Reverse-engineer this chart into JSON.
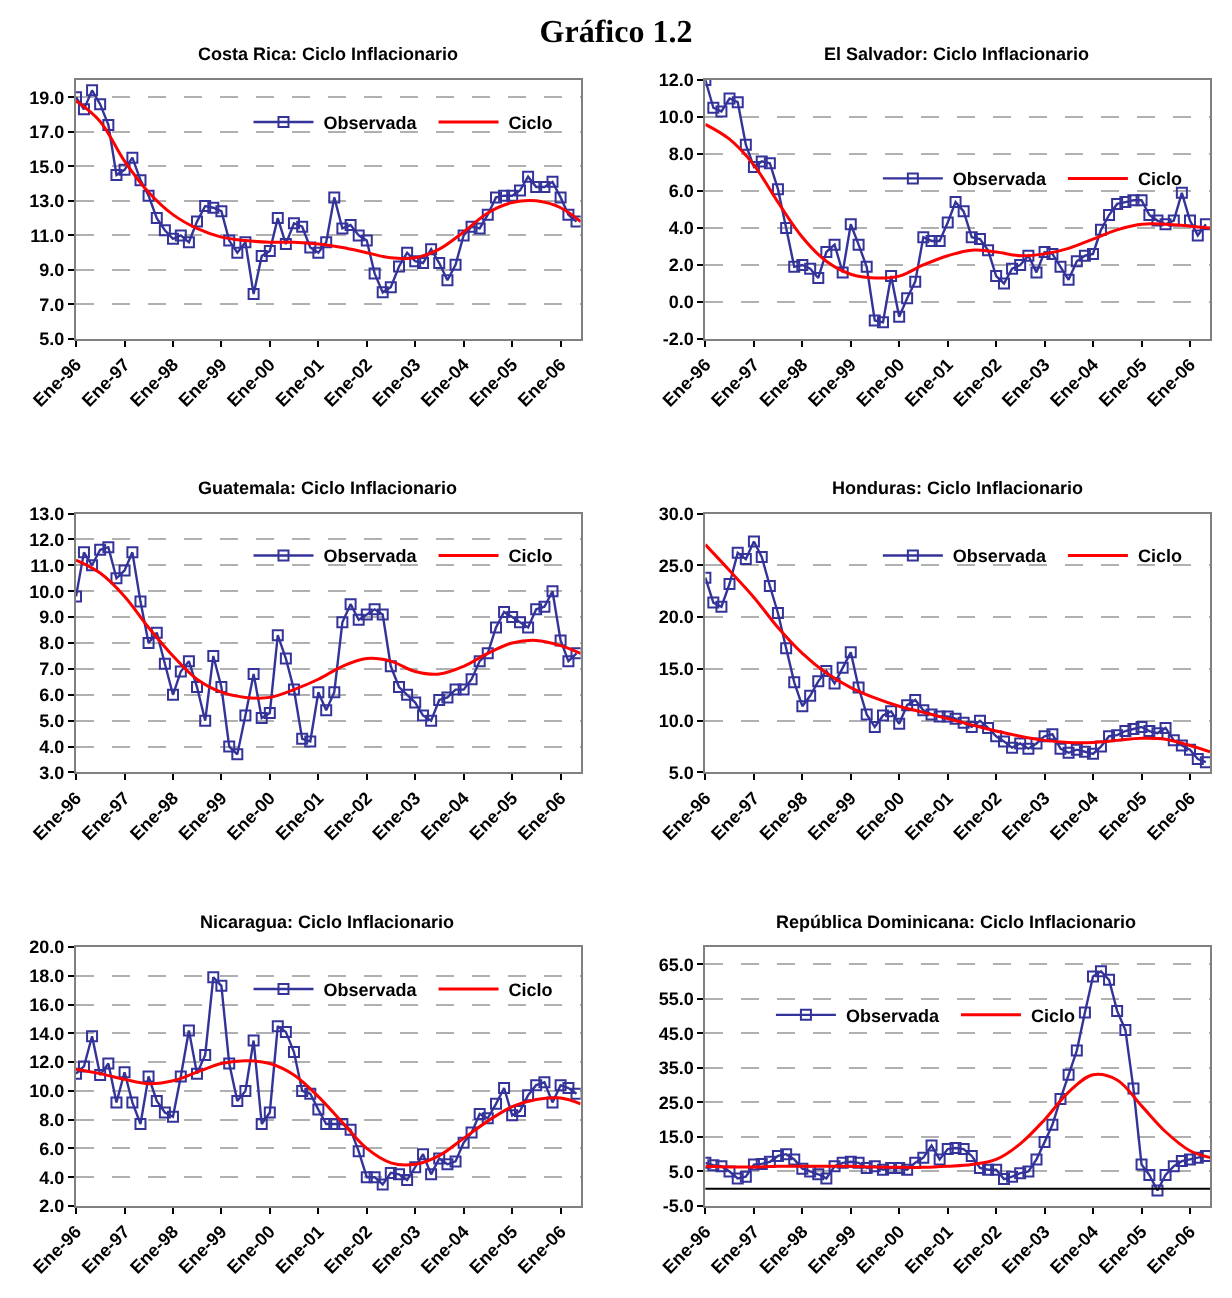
{
  "chart_data": [
    {
      "type": "other",
      "title": "Gráfico 1.2"
    },
    {
      "type": "line",
      "title": "Costa Rica: Ciclo Inflacionario",
      "legend": "top right",
      "grid": "y",
      "x": [
        "1996-01",
        "1996-03",
        "1996-05",
        "1996-07",
        "1996-09",
        "1996-11",
        "1997-01",
        "1997-03",
        "1997-05",
        "1997-07",
        "1997-09",
        "1997-11",
        "1998-01",
        "1998-03",
        "1998-05",
        "1998-07",
        "1998-09",
        "1998-11",
        "1999-01",
        "1999-03",
        "1999-05",
        "1999-07",
        "1999-09",
        "1999-11",
        "2000-01",
        "2000-03",
        "2000-05",
        "2000-07",
        "2000-09",
        "2000-11",
        "2001-01",
        "2001-03",
        "2001-05",
        "2001-07",
        "2001-09",
        "2001-11",
        "2002-01",
        "2002-03",
        "2002-05",
        "2002-07",
        "2002-09",
        "2002-11",
        "2003-01",
        "2003-03",
        "2003-05",
        "2003-07",
        "2003-09",
        "2003-11",
        "2004-01",
        "2004-03",
        "2004-05",
        "2004-07",
        "2004-09",
        "2004-11",
        "2005-01",
        "2005-03",
        "2005-05",
        "2005-07",
        "2005-09",
        "2005-11",
        "2006-01",
        "2006-03",
        "2006-05"
      ],
      "xlim": [
        "1996-01",
        "2006-06"
      ],
      "xticks": [
        {
          "value": "1996-01",
          "label": "Ene-96"
        },
        {
          "value": "1997-01",
          "label": "Ene-97"
        },
        {
          "value": "1998-01",
          "label": "Ene-98"
        },
        {
          "value": "1999-01",
          "label": "Ene-99"
        },
        {
          "value": "2000-01",
          "label": "Ene-00"
        },
        {
          "value": "2001-01",
          "label": "Ene-01"
        },
        {
          "value": "2002-01",
          "label": "Ene-02"
        },
        {
          "value": "2003-01",
          "label": "Ene-03"
        },
        {
          "value": "2004-01",
          "label": "Ene-04"
        },
        {
          "value": "2005-01",
          "label": "Ene-05"
        },
        {
          "value": "2006-01",
          "label": "Ene-06"
        }
      ],
      "ylim": [
        5,
        20
      ],
      "yticks": [
        {
          "value": 5,
          "label": "5.0"
        },
        {
          "value": 7,
          "label": "7.0"
        },
        {
          "value": 9,
          "label": "9.0"
        },
        {
          "value": 11,
          "label": "11.0"
        },
        {
          "value": 13,
          "label": "13.0"
        },
        {
          "value": 15,
          "label": "15.0"
        },
        {
          "value": 17,
          "label": "17.0"
        },
        {
          "value": 19,
          "label": "19.0"
        }
      ],
      "series": [
        {
          "name": "Observada",
          "color": "#333399",
          "marker": "square",
          "values": [
            19.0,
            18.3,
            19.4,
            18.6,
            17.4,
            14.5,
            14.8,
            15.5,
            14.2,
            13.3,
            12.0,
            11.3,
            10.8,
            11.0,
            10.6,
            11.8,
            12.7,
            12.6,
            12.4,
            10.7,
            10.0,
            10.6,
            7.6,
            9.8,
            10.1,
            12.0,
            10.5,
            11.7,
            11.5,
            10.3,
            10.0,
            10.6,
            13.2,
            11.4,
            11.6,
            11.0,
            10.7,
            8.8,
            7.7,
            8.0,
            9.2,
            10.0,
            9.5,
            9.4,
            10.2,
            9.4,
            8.4,
            9.3,
            11.0,
            11.5,
            11.4,
            12.2,
            13.2,
            13.3,
            13.3,
            13.6,
            14.4,
            13.8,
            13.8,
            14.1,
            13.2,
            12.2,
            11.8
          ]
        },
        {
          "name": "Ciclo",
          "color": "#ff0000",
          "marker": "none",
          "x": [
            "1996-01",
            "1996-07",
            "1997-01",
            "1997-07",
            "1998-01",
            "1998-07",
            "1999-01",
            "1999-07",
            "2000-01",
            "2000-07",
            "2001-01",
            "2001-07",
            "2002-01",
            "2002-07",
            "2003-01",
            "2003-07",
            "2004-01",
            "2004-07",
            "2005-01",
            "2005-07",
            "2006-01",
            "2006-06"
          ],
          "values": [
            18.8,
            17.6,
            15.3,
            13.5,
            12.2,
            11.4,
            10.9,
            10.7,
            10.6,
            10.6,
            10.5,
            10.3,
            10.0,
            9.7,
            9.7,
            10.2,
            11.2,
            12.3,
            12.9,
            13.0,
            12.6,
            11.8
          ]
        }
      ]
    },
    {
      "type": "line",
      "title": "El Salvador: Ciclo Inflacionario",
      "legend": "right",
      "grid": "y",
      "x": [
        "1996-01",
        "1996-03",
        "1996-05",
        "1996-07",
        "1996-09",
        "1996-11",
        "1997-01",
        "1997-03",
        "1997-05",
        "1997-07",
        "1997-09",
        "1997-11",
        "1998-01",
        "1998-03",
        "1998-05",
        "1998-07",
        "1998-09",
        "1998-11",
        "1999-01",
        "1999-03",
        "1999-05",
        "1999-07",
        "1999-09",
        "1999-11",
        "2000-01",
        "2000-03",
        "2000-05",
        "2000-07",
        "2000-09",
        "2000-11",
        "2001-01",
        "2001-03",
        "2001-05",
        "2001-07",
        "2001-09",
        "2001-11",
        "2002-01",
        "2002-03",
        "2002-05",
        "2002-07",
        "2002-09",
        "2002-11",
        "2003-01",
        "2003-03",
        "2003-05",
        "2003-07",
        "2003-09",
        "2003-11",
        "2004-01",
        "2004-03",
        "2004-05",
        "2004-07",
        "2004-09",
        "2004-11",
        "2005-01",
        "2005-03",
        "2005-05",
        "2005-07",
        "2005-09",
        "2005-11",
        "2006-01",
        "2006-03",
        "2006-05"
      ],
      "xlim": [
        "1996-01",
        "2006-06"
      ],
      "xticks": [
        {
          "value": "1996-01",
          "label": "Ene-96"
        },
        {
          "value": "1997-01",
          "label": "Ene-97"
        },
        {
          "value": "1998-01",
          "label": "Ene-98"
        },
        {
          "value": "1999-01",
          "label": "Ene-99"
        },
        {
          "value": "2000-01",
          "label": "Ene-00"
        },
        {
          "value": "2001-01",
          "label": "Ene-01"
        },
        {
          "value": "2002-01",
          "label": "Ene-02"
        },
        {
          "value": "2003-01",
          "label": "Ene-03"
        },
        {
          "value": "2004-01",
          "label": "Ene-04"
        },
        {
          "value": "2005-01",
          "label": "Ene-05"
        },
        {
          "value": "2006-01",
          "label": "Ene-06"
        }
      ],
      "ylim": [
        -2,
        12
      ],
      "yticks": [
        {
          "value": -2,
          "label": "-2.0"
        },
        {
          "value": 0,
          "label": "0.0"
        },
        {
          "value": 2,
          "label": "2.0"
        },
        {
          "value": 4,
          "label": "4.0"
        },
        {
          "value": 6,
          "label": "6.0"
        },
        {
          "value": 8,
          "label": "8.0"
        },
        {
          "value": 10,
          "label": "10.0"
        },
        {
          "value": 12,
          "label": "12.0"
        }
      ],
      "series": [
        {
          "name": "Observada",
          "color": "#333399",
          "marker": "square",
          "values": [
            12.0,
            10.5,
            10.3,
            11.0,
            10.8,
            8.5,
            7.3,
            7.6,
            7.5,
            6.1,
            4.0,
            1.9,
            2.0,
            1.8,
            1.3,
            2.7,
            3.1,
            1.6,
            4.2,
            3.1,
            1.9,
            -1.0,
            -1.1,
            1.4,
            -0.8,
            0.2,
            1.1,
            3.5,
            3.3,
            3.3,
            4.3,
            5.4,
            4.9,
            3.5,
            3.4,
            2.8,
            1.4,
            1.0,
            1.8,
            2.0,
            2.5,
            1.6,
            2.7,
            2.6,
            1.9,
            1.2,
            2.2,
            2.5,
            2.6,
            3.9,
            4.7,
            5.3,
            5.4,
            5.5,
            5.5,
            4.7,
            4.4,
            4.2,
            4.4,
            5.9,
            4.4,
            3.6,
            4.2
          ]
        },
        {
          "name": "Ciclo",
          "color": "#ff0000",
          "marker": "none",
          "x": [
            "1996-01",
            "1996-07",
            "1997-01",
            "1997-07",
            "1998-01",
            "1998-07",
            "1999-01",
            "1999-07",
            "2000-01",
            "2000-07",
            "2001-01",
            "2001-07",
            "2002-01",
            "2002-07",
            "2003-01",
            "2003-07",
            "2004-01",
            "2004-07",
            "2005-01",
            "2005-07",
            "2006-01",
            "2006-06"
          ],
          "values": [
            9.6,
            8.8,
            7.4,
            5.4,
            3.5,
            2.2,
            1.5,
            1.3,
            1.4,
            2.0,
            2.5,
            2.8,
            2.7,
            2.5,
            2.6,
            2.9,
            3.4,
            3.9,
            4.2,
            4.2,
            4.1,
            4.0
          ]
        }
      ]
    },
    {
      "type": "line",
      "title": "Guatemala: Ciclo Inflacionario",
      "legend": "top right",
      "grid": "y",
      "x": [
        "1996-01",
        "1996-03",
        "1996-05",
        "1996-07",
        "1996-09",
        "1996-11",
        "1997-01",
        "1997-03",
        "1997-05",
        "1997-07",
        "1997-09",
        "1997-11",
        "1998-01",
        "1998-03",
        "1998-05",
        "1998-07",
        "1998-09",
        "1998-11",
        "1999-01",
        "1999-03",
        "1999-05",
        "1999-07",
        "1999-09",
        "1999-11",
        "2000-01",
        "2000-03",
        "2000-05",
        "2000-07",
        "2000-09",
        "2000-11",
        "2001-01",
        "2001-03",
        "2001-05",
        "2001-07",
        "2001-09",
        "2001-11",
        "2002-01",
        "2002-03",
        "2002-05",
        "2002-07",
        "2002-09",
        "2002-11",
        "2003-01",
        "2003-03",
        "2003-05",
        "2003-07",
        "2003-09",
        "2003-11",
        "2004-01",
        "2004-03",
        "2004-05",
        "2004-07",
        "2004-09",
        "2004-11",
        "2005-01",
        "2005-03",
        "2005-05",
        "2005-07",
        "2005-09",
        "2005-11",
        "2006-01",
        "2006-03",
        "2006-05"
      ],
      "xlim": [
        "1996-01",
        "2006-06"
      ],
      "xticks": [
        {
          "value": "1996-01",
          "label": "Ene-96"
        },
        {
          "value": "1997-01",
          "label": "Ene-97"
        },
        {
          "value": "1998-01",
          "label": "Ene-98"
        },
        {
          "value": "1999-01",
          "label": "Ene-99"
        },
        {
          "value": "2000-01",
          "label": "Ene-00"
        },
        {
          "value": "2001-01",
          "label": "Ene-01"
        },
        {
          "value": "2002-01",
          "label": "Ene-02"
        },
        {
          "value": "2003-01",
          "label": "Ene-03"
        },
        {
          "value": "2004-01",
          "label": "Ene-04"
        },
        {
          "value": "2005-01",
          "label": "Ene-05"
        },
        {
          "value": "2006-01",
          "label": "Ene-06"
        }
      ],
      "ylim": [
        3,
        13
      ],
      "yticks": [
        {
          "value": 3,
          "label": "3.0"
        },
        {
          "value": 4,
          "label": "4.0"
        },
        {
          "value": 5,
          "label": "5.0"
        },
        {
          "value": 6,
          "label": "6.0"
        },
        {
          "value": 7,
          "label": "7.0"
        },
        {
          "value": 8,
          "label": "8.0"
        },
        {
          "value": 9,
          "label": "9.0"
        },
        {
          "value": 10,
          "label": "10.0"
        },
        {
          "value": 11,
          "label": "11.0"
        },
        {
          "value": 12,
          "label": "12.0"
        },
        {
          "value": 13,
          "label": "13.0"
        }
      ],
      "series": [
        {
          "name": "Observada",
          "color": "#333399",
          "marker": "square",
          "values": [
            9.8,
            11.5,
            11.0,
            11.6,
            11.7,
            10.5,
            10.8,
            11.5,
            9.6,
            8.0,
            8.4,
            7.2,
            6.0,
            6.9,
            7.3,
            6.3,
            5.0,
            7.5,
            6.3,
            4.0,
            3.7,
            5.2,
            6.8,
            5.1,
            5.3,
            8.3,
            7.4,
            6.2,
            4.3,
            4.2,
            6.1,
            5.4,
            6.1,
            8.8,
            9.5,
            8.9,
            9.1,
            9.3,
            9.1,
            7.1,
            6.3,
            6.0,
            5.7,
            5.2,
            5.0,
            5.8,
            5.9,
            6.2,
            6.2,
            6.6,
            7.3,
            7.6,
            8.6,
            9.2,
            9.0,
            8.8,
            8.6,
            9.3,
            9.4,
            10.0,
            8.1,
            7.3,
            7.6
          ]
        },
        {
          "name": "Ciclo",
          "color": "#ff0000",
          "marker": "none",
          "x": [
            "1996-01",
            "1996-07",
            "1997-01",
            "1997-07",
            "1998-01",
            "1998-07",
            "1999-01",
            "1999-07",
            "2000-01",
            "2000-07",
            "2001-01",
            "2001-07",
            "2002-01",
            "2002-07",
            "2003-01",
            "2003-07",
            "2004-01",
            "2004-07",
            "2005-01",
            "2005-07",
            "2006-01",
            "2006-06"
          ],
          "values": [
            11.2,
            10.7,
            9.8,
            8.6,
            7.5,
            6.6,
            6.1,
            5.9,
            5.9,
            6.2,
            6.6,
            7.1,
            7.4,
            7.3,
            6.9,
            6.8,
            7.1,
            7.6,
            8.0,
            8.1,
            7.9,
            7.6
          ]
        }
      ]
    },
    {
      "type": "line",
      "title": "Honduras: Ciclo Inflacionario",
      "legend": "top right",
      "grid": "y",
      "x": [
        "1996-01",
        "1996-03",
        "1996-05",
        "1996-07",
        "1996-09",
        "1996-11",
        "1997-01",
        "1997-03",
        "1997-05",
        "1997-07",
        "1997-09",
        "1997-11",
        "1998-01",
        "1998-03",
        "1998-05",
        "1998-07",
        "1998-09",
        "1998-11",
        "1999-01",
        "1999-03",
        "1999-05",
        "1999-07",
        "1999-09",
        "1999-11",
        "2000-01",
        "2000-03",
        "2000-05",
        "2000-07",
        "2000-09",
        "2000-11",
        "2001-01",
        "2001-03",
        "2001-05",
        "2001-07",
        "2001-09",
        "2001-11",
        "2002-01",
        "2002-03",
        "2002-05",
        "2002-07",
        "2002-09",
        "2002-11",
        "2003-01",
        "2003-03",
        "2003-05",
        "2003-07",
        "2003-09",
        "2003-11",
        "2004-01",
        "2004-03",
        "2004-05",
        "2004-07",
        "2004-09",
        "2004-11",
        "2005-01",
        "2005-03",
        "2005-05",
        "2005-07",
        "2005-09",
        "2005-11",
        "2006-01",
        "2006-03",
        "2006-05"
      ],
      "xlim": [
        "1996-01",
        "2006-06"
      ],
      "xticks": [
        {
          "value": "1996-01",
          "label": "Ene-96"
        },
        {
          "value": "1997-01",
          "label": "Ene-97"
        },
        {
          "value": "1998-01",
          "label": "Ene-98"
        },
        {
          "value": "1999-01",
          "label": "Ene-99"
        },
        {
          "value": "2000-01",
          "label": "Ene-00"
        },
        {
          "value": "2001-01",
          "label": "Ene-01"
        },
        {
          "value": "2002-01",
          "label": "Ene-02"
        },
        {
          "value": "2003-01",
          "label": "Ene-03"
        },
        {
          "value": "2004-01",
          "label": "Ene-04"
        },
        {
          "value": "2005-01",
          "label": "Ene-05"
        },
        {
          "value": "2006-01",
          "label": "Ene-06"
        }
      ],
      "ylim": [
        5,
        30
      ],
      "yticks": [
        {
          "value": 5,
          "label": "5.0"
        },
        {
          "value": 10,
          "label": "10.0"
        },
        {
          "value": 15,
          "label": "15.0"
        },
        {
          "value": 20,
          "label": "20.0"
        },
        {
          "value": 25,
          "label": "25.0"
        },
        {
          "value": 30,
          "label": "30.0"
        }
      ],
      "series": [
        {
          "name": "Observada",
          "color": "#333399",
          "marker": "square",
          "values": [
            23.8,
            21.4,
            21.0,
            23.2,
            26.2,
            25.6,
            27.3,
            25.8,
            23.0,
            20.4,
            17.0,
            13.7,
            11.4,
            12.4,
            13.8,
            14.8,
            13.6,
            15.1,
            16.6,
            13.2,
            10.6,
            9.4,
            10.5,
            10.9,
            9.7,
            11.5,
            12.0,
            11.0,
            10.6,
            10.4,
            10.4,
            10.2,
            9.8,
            9.4,
            10.0,
            9.3,
            8.5,
            8.0,
            7.4,
            7.8,
            7.3,
            7.8,
            8.5,
            8.7,
            7.3,
            6.9,
            7.2,
            7.0,
            6.8,
            7.5,
            8.5,
            8.6,
            9.0,
            9.2,
            9.4,
            9.0,
            8.8,
            9.3,
            8.1,
            7.6,
            7.2,
            6.3,
            6.0
          ]
        },
        {
          "name": "Ciclo",
          "color": "#ff0000",
          "marker": "none",
          "x": [
            "1996-01",
            "1996-07",
            "1997-01",
            "1997-07",
            "1998-01",
            "1998-07",
            "1999-01",
            "1999-07",
            "2000-01",
            "2000-07",
            "2001-01",
            "2001-07",
            "2002-01",
            "2002-07",
            "2003-01",
            "2003-07",
            "2004-01",
            "2004-07",
            "2005-01",
            "2005-07",
            "2006-01",
            "2006-06"
          ],
          "values": [
            27.0,
            24.5,
            21.9,
            19.0,
            16.5,
            14.6,
            13.2,
            12.2,
            11.4,
            10.8,
            10.2,
            9.6,
            9.0,
            8.5,
            8.1,
            7.9,
            7.9,
            8.1,
            8.3,
            8.2,
            7.6,
            7.0
          ]
        }
      ]
    },
    {
      "type": "line",
      "title": "Nicaragua: Ciclo Inflacionario",
      "legend": "top right",
      "grid": "y",
      "x": [
        "1996-01",
        "1996-03",
        "1996-05",
        "1996-07",
        "1996-09",
        "1996-11",
        "1997-01",
        "1997-03",
        "1997-05",
        "1997-07",
        "1997-09",
        "1997-11",
        "1998-01",
        "1998-03",
        "1998-05",
        "1998-07",
        "1998-09",
        "1998-11",
        "1999-01",
        "1999-03",
        "1999-05",
        "1999-07",
        "1999-09",
        "1999-11",
        "2000-01",
        "2000-03",
        "2000-05",
        "2000-07",
        "2000-09",
        "2000-11",
        "2001-01",
        "2001-03",
        "2001-05",
        "2001-07",
        "2001-09",
        "2001-11",
        "2002-01",
        "2002-03",
        "2002-05",
        "2002-07",
        "2002-09",
        "2002-11",
        "2003-01",
        "2003-03",
        "2003-05",
        "2003-07",
        "2003-09",
        "2003-11",
        "2004-01",
        "2004-03",
        "2004-05",
        "2004-07",
        "2004-09",
        "2004-11",
        "2005-01",
        "2005-03",
        "2005-05",
        "2005-07",
        "2005-09",
        "2005-11",
        "2006-01",
        "2006-03",
        "2006-05"
      ],
      "xlim": [
        "1996-01",
        "2006-06"
      ],
      "xticks": [
        {
          "value": "1996-01",
          "label": "Ene-96"
        },
        {
          "value": "1997-01",
          "label": "Ene-97"
        },
        {
          "value": "1998-01",
          "label": "Ene-98"
        },
        {
          "value": "1999-01",
          "label": "Ene-99"
        },
        {
          "value": "2000-01",
          "label": "Ene-00"
        },
        {
          "value": "2001-01",
          "label": "Ene-01"
        },
        {
          "value": "2002-01",
          "label": "Ene-02"
        },
        {
          "value": "2003-01",
          "label": "Ene-03"
        },
        {
          "value": "2004-01",
          "label": "Ene-04"
        },
        {
          "value": "2005-01",
          "label": "Ene-05"
        },
        {
          "value": "2006-01",
          "label": "Ene-06"
        }
      ],
      "ylim": [
        2,
        20
      ],
      "yticks": [
        {
          "value": 2,
          "label": "2.0"
        },
        {
          "value": 4,
          "label": "4.0"
        },
        {
          "value": 6,
          "label": "6.0"
        },
        {
          "value": 8,
          "label": "8.0"
        },
        {
          "value": 10,
          "label": "10.0"
        },
        {
          "value": 12,
          "label": "12.0"
        },
        {
          "value": 14,
          "label": "14.0"
        },
        {
          "value": 16,
          "label": "16.0"
        },
        {
          "value": 18,
          "label": "18.0"
        },
        {
          "value": 20,
          "label": "20.0"
        }
      ],
      "series": [
        {
          "name": "Observada",
          "color": "#333399",
          "marker": "square",
          "values": [
            11.2,
            11.7,
            13.8,
            11.1,
            11.9,
            9.2,
            11.3,
            9.2,
            7.7,
            11.0,
            9.3,
            8.5,
            8.2,
            11.0,
            14.2,
            11.2,
            12.5,
            17.9,
            17.3,
            11.9,
            9.3,
            10.0,
            13.5,
            7.7,
            8.5,
            14.5,
            14.1,
            12.7,
            10.0,
            9.8,
            8.7,
            7.7,
            7.7,
            7.7,
            7.3,
            5.8,
            4.0,
            4.0,
            3.5,
            4.3,
            4.2,
            3.8,
            4.7,
            5.6,
            4.2,
            5.3,
            4.9,
            5.1,
            6.4,
            7.1,
            8.4,
            8.1,
            9.1,
            10.2,
            8.3,
            8.6,
            9.7,
            10.4,
            10.6,
            9.2,
            10.4,
            10.2,
            9.8
          ]
        },
        {
          "name": "Ciclo",
          "color": "#ff0000",
          "marker": "none",
          "x": [
            "1996-01",
            "1996-07",
            "1997-01",
            "1997-07",
            "1998-01",
            "1998-07",
            "1999-01",
            "1999-07",
            "2000-01",
            "2000-07",
            "2001-01",
            "2001-07",
            "2002-01",
            "2002-07",
            "2003-01",
            "2003-07",
            "2004-01",
            "2004-07",
            "2005-01",
            "2005-07",
            "2006-01",
            "2006-06"
          ],
          "values": [
            11.5,
            11.2,
            10.8,
            10.5,
            10.7,
            11.3,
            11.9,
            12.1,
            11.9,
            11.1,
            9.6,
            7.8,
            6.0,
            5.0,
            4.9,
            5.5,
            6.7,
            7.9,
            8.9,
            9.4,
            9.5,
            9.1
          ]
        }
      ]
    },
    {
      "type": "line",
      "title": "República Dominicana: Ciclo Inflacionario",
      "legend": "top left",
      "grid": "y",
      "x": [
        "1996-01",
        "1996-03",
        "1996-05",
        "1996-07",
        "1996-09",
        "1996-11",
        "1997-01",
        "1997-03",
        "1997-05",
        "1997-07",
        "1997-09",
        "1997-11",
        "1998-01",
        "1998-03",
        "1998-05",
        "1998-07",
        "1998-09",
        "1998-11",
        "1999-01",
        "1999-03",
        "1999-05",
        "1999-07",
        "1999-09",
        "1999-11",
        "2000-01",
        "2000-03",
        "2000-05",
        "2000-07",
        "2000-09",
        "2000-11",
        "2001-01",
        "2001-03",
        "2001-05",
        "2001-07",
        "2001-09",
        "2001-11",
        "2002-01",
        "2002-03",
        "2002-05",
        "2002-07",
        "2002-09",
        "2002-11",
        "2003-01",
        "2003-03",
        "2003-05",
        "2003-07",
        "2003-09",
        "2003-11",
        "2004-01",
        "2004-03",
        "2004-05",
        "2004-07",
        "2004-09",
        "2004-11",
        "2005-01",
        "2005-03",
        "2005-05",
        "2005-07",
        "2005-09",
        "2005-11",
        "2006-01",
        "2006-03",
        "2006-05"
      ],
      "xlim": [
        "1996-01",
        "2006-06"
      ],
      "xticks": [
        {
          "value": "1996-01",
          "label": "Ene-96"
        },
        {
          "value": "1997-01",
          "label": "Ene-97"
        },
        {
          "value": "1998-01",
          "label": "Ene-98"
        },
        {
          "value": "1999-01",
          "label": "Ene-99"
        },
        {
          "value": "2000-01",
          "label": "Ene-00"
        },
        {
          "value": "2001-01",
          "label": "Ene-01"
        },
        {
          "value": "2002-01",
          "label": "Ene-02"
        },
        {
          "value": "2003-01",
          "label": "Ene-03"
        },
        {
          "value": "2004-01",
          "label": "Ene-04"
        },
        {
          "value": "2005-01",
          "label": "Ene-05"
        },
        {
          "value": "2006-01",
          "label": "Ene-06"
        }
      ],
      "ylim": [
        -5,
        70
      ],
      "yticks": [
        {
          "value": -5,
          "label": "-5.0"
        },
        {
          "value": 5,
          "label": "5.0"
        },
        {
          "value": 15,
          "label": "15.0"
        },
        {
          "value": 25,
          "label": "25.0"
        },
        {
          "value": 35,
          "label": "35.0"
        },
        {
          "value": 45,
          "label": "45.0"
        },
        {
          "value": 55,
          "label": "55.0"
        },
        {
          "value": 65,
          "label": "65.0"
        }
      ],
      "ref_lines": [
        {
          "axis": "y",
          "value": 0,
          "color": "#000000"
        }
      ],
      "series": [
        {
          "name": "Observada",
          "color": "#333399",
          "marker": "square",
          "values": [
            7.5,
            6.8,
            6.5,
            5.0,
            3.0,
            3.5,
            7.0,
            7.2,
            7.8,
            9.5,
            10.0,
            8.5,
            5.8,
            5.0,
            4.2,
            3.0,
            6.5,
            7.5,
            7.8,
            7.5,
            6.0,
            6.5,
            5.5,
            6.0,
            6.0,
            5.5,
            7.5,
            9.0,
            12.5,
            8.5,
            11.5,
            11.8,
            11.5,
            9.5,
            6.0,
            5.5,
            5.5,
            2.8,
            3.5,
            4.5,
            5.0,
            8.5,
            13.5,
            18.5,
            26.0,
            33.0,
            40.0,
            51.0,
            61.5,
            63.0,
            60.5,
            51.5,
            46.0,
            29.0,
            7.0,
            4.0,
            -0.5,
            4.0,
            6.5,
            8.0,
            8.5,
            9.0,
            9.5
          ]
        },
        {
          "name": "Ciclo",
          "color": "#ff0000",
          "marker": "none",
          "x": [
            "1996-01",
            "1996-07",
            "1997-01",
            "1997-07",
            "1998-01",
            "1998-07",
            "1999-01",
            "1999-07",
            "2000-01",
            "2000-07",
            "2001-01",
            "2001-07",
            "2002-01",
            "2002-07",
            "2003-01",
            "2003-07",
            "2004-01",
            "2004-07",
            "2005-01",
            "2005-07",
            "2006-01",
            "2006-06"
          ],
          "values": [
            6.5,
            6.3,
            6.3,
            6.5,
            6.5,
            6.5,
            6.5,
            6.3,
            6.2,
            6.2,
            6.5,
            7.0,
            8.5,
            13.0,
            20.0,
            28.0,
            33.0,
            31.5,
            24.0,
            16.5,
            11.0,
            9.0
          ]
        }
      ]
    }
  ]
}
